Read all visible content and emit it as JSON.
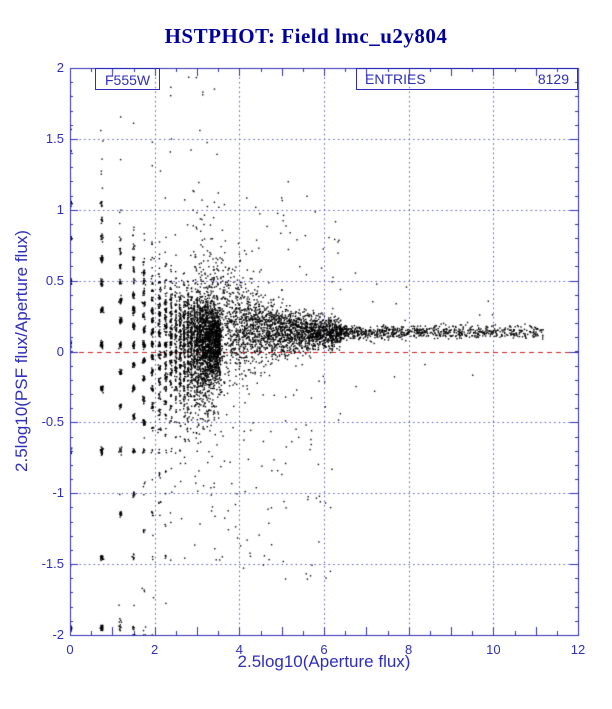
{
  "title": "HSTPHOT: Field lmc_u2y804",
  "annotations": {
    "filter_label": "F555W",
    "entries_label": "ENTRIES",
    "entries_value": "8129"
  },
  "chart_data": {
    "type": "scatter",
    "title": "HSTPHOT: Field lmc_u2y804",
    "xlabel": "2.5log10(Aperture flux)",
    "ylabel": "2.5log10(PSF flux/Aperture flux)",
    "xlim": [
      0,
      12
    ],
    "ylim": [
      -2,
      2
    ],
    "x_ticks": [
      0,
      2,
      4,
      6,
      8,
      10,
      12
    ],
    "y_ticks": [
      -2,
      -1.5,
      -1,
      -0.5,
      0,
      0.5,
      1,
      1.5,
      2
    ],
    "x_major_step": 1,
    "x_minor_step": 0.5,
    "y_major_step": 0.5,
    "y_minor_step": 0.1,
    "x_gridlines": [
      2,
      4,
      6,
      8,
      10
    ],
    "y_gridlines": [
      -1.5,
      -1,
      -0.5,
      0.5,
      1,
      1.5
    ],
    "zero_line_y": 0,
    "grid": "dotted",
    "legend_position": "none",
    "filter": "F555W",
    "n_entries": 8129,
    "band_asymptote_y": 0.15,
    "description": "Scatter of PSF-vs-aperture photometry ratio: fan of quantized-flux rays at faint fluxes (x<3.5) converging to a narrow band near y=0.15 at bright fluxes; dashed red reference line at y=0.",
    "colors": {
      "title": "#00009b",
      "axis": "#2e2eb8",
      "frame": "#2e2eb8",
      "grid": "#5555cc",
      "points": "#000000",
      "zero_line": "#cc2222",
      "background": "#ffffff"
    },
    "generator": {
      "seed": 20,
      "fractions": {
        "faint": 0.57,
        "mid": 0.34,
        "bright": 0.09
      },
      "faint": {
        "a_max": 26,
        "a_pow": 1.25,
        "sigma_base": 0.8,
        "sigma_sqrt": 0.5,
        "bias": 0.05,
        "jitter": 0.015,
        "outlier_prob": 0.025
      },
      "mid": {
        "x_min": 2.9,
        "x_span": 3.5,
        "x_pow": 0.95,
        "band_base": 0.12,
        "band_amp": 0.1,
        "band_scale": 1.5,
        "sigma_base": 0.035,
        "sigma_amp": 0.38,
        "sigma_scale": 1.1,
        "low_outlier_prob": 0.05,
        "high_outlier_prob": 0.015
      },
      "bright": {
        "x_min": 6.4,
        "x_span": 4.8,
        "x_pow": 1.5,
        "band": 0.135,
        "sigma": 0.025,
        "outlier_prob": 0.02
      }
    }
  }
}
